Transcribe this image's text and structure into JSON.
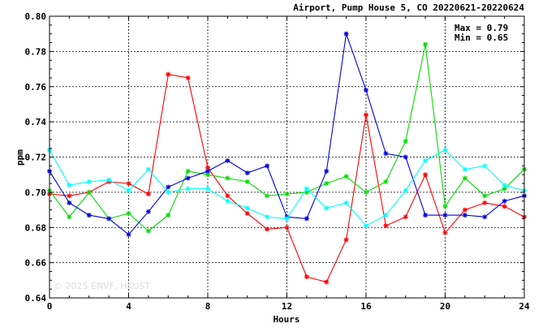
{
  "chart_data": {
    "type": "line",
    "title": "Airport, Pump House 5, CO 20220621-20220624",
    "xlabel": "Hours",
    "ylabel": "ppm",
    "xlim": [
      0,
      24
    ],
    "ylim": [
      0.64,
      0.8
    ],
    "xticks": [
      0,
      4,
      8,
      12,
      16,
      20,
      24
    ],
    "yticks": [
      0.64,
      0.66,
      0.68,
      0.7,
      0.72,
      0.74,
      0.76,
      0.78,
      0.8
    ],
    "grid": true,
    "stats": {
      "max_label": "Max = 0.79",
      "min_label": "Min = 0.65"
    },
    "watermark": "© 2025  ENVF, HKUST",
    "x": [
      0,
      1,
      2,
      3,
      4,
      5,
      6,
      7,
      8,
      9,
      10,
      11,
      12,
      13,
      14,
      15,
      16,
      17,
      18,
      19,
      20,
      21,
      22,
      23,
      24
    ],
    "series": [
      {
        "color": "#ff0000",
        "values": [
          0.699,
          0.698,
          0.7,
          0.706,
          0.705,
          0.699,
          0.767,
          0.765,
          0.714,
          0.698,
          0.688,
          0.679,
          0.68,
          0.652,
          0.649,
          0.673,
          0.744,
          0.681,
          0.686,
          0.71,
          0.677,
          0.69,
          0.694,
          0.692,
          0.686
        ]
      },
      {
        "color": "#00dd00",
        "values": [
          0.701,
          0.686,
          0.7,
          0.685,
          0.688,
          0.678,
          0.687,
          0.712,
          0.71,
          0.708,
          0.706,
          0.698,
          0.699,
          0.7,
          0.705,
          0.709,
          0.7,
          0.706,
          0.729,
          0.784,
          0.692,
          0.708,
          0.698,
          0.702,
          0.713
        ]
      },
      {
        "color": "#0000dd",
        "values": [
          0.712,
          0.694,
          0.687,
          0.685,
          0.676,
          0.689,
          0.703,
          0.708,
          0.712,
          0.718,
          0.711,
          0.715,
          0.686,
          0.685,
          0.712,
          0.79,
          0.758,
          0.722,
          0.72,
          0.687,
          0.687,
          0.687,
          0.686,
          0.695,
          0.698
        ]
      },
      {
        "color": "#00ffff",
        "values": [
          0.724,
          0.704,
          0.706,
          0.707,
          0.701,
          0.713,
          0.7,
          0.702,
          0.702,
          0.695,
          0.691,
          0.686,
          0.685,
          0.702,
          0.691,
          0.694,
          0.681,
          0.687,
          0.701,
          0.718,
          0.724,
          0.713,
          0.715,
          0.704,
          0.701
        ]
      }
    ]
  }
}
